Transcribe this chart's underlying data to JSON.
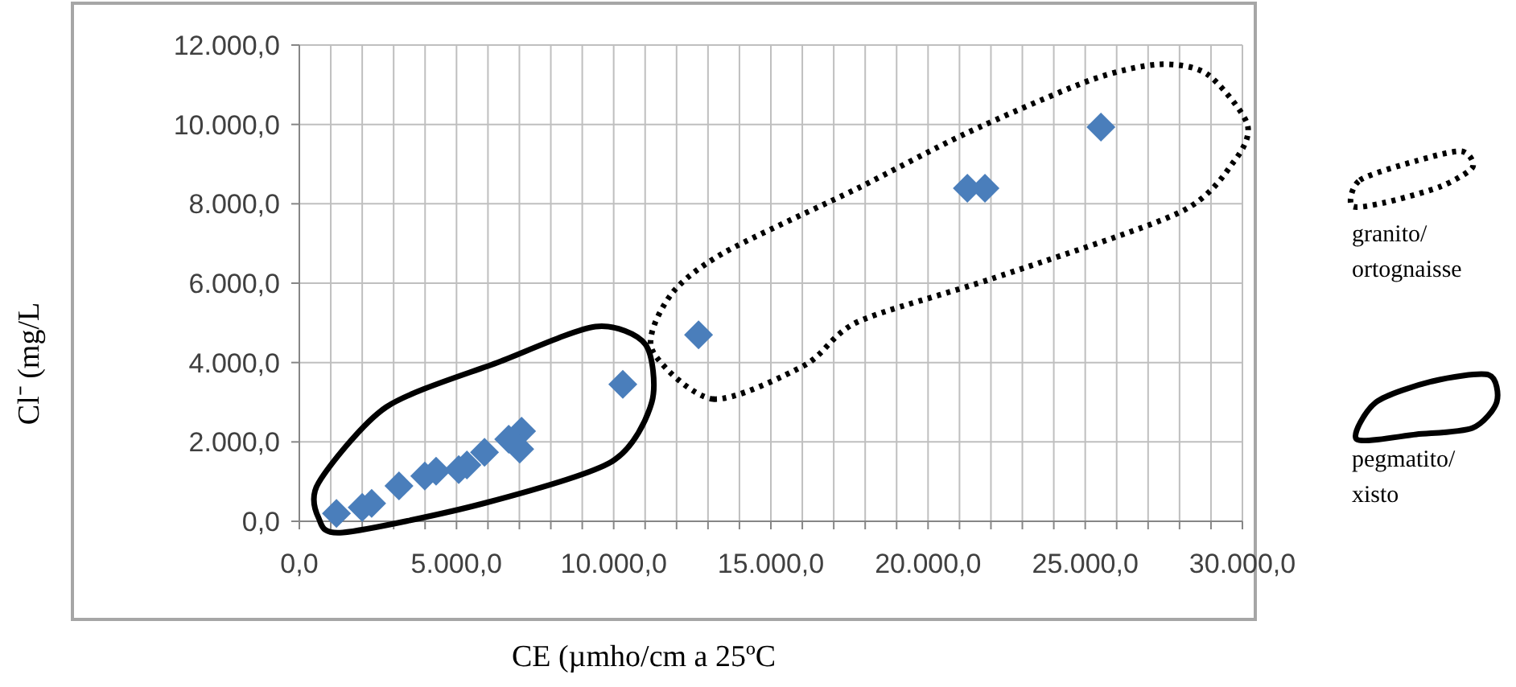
{
  "chart_data": {
    "type": "scatter",
    "xlabel": "CE (µmho/cm a 25ºC",
    "ylabel": "Cl⁻ (mg/L",
    "x": [
      1180,
      2000,
      2300,
      3170,
      3990,
      4350,
      5070,
      5330,
      5890,
      6660,
      7070,
      7010,
      10290,
      12700,
      21250,
      21810,
      25500
    ],
    "series": [
      {
        "color": "#4a7ebb",
        "values": [
          200,
          350,
          450,
          890,
          1140,
          1260,
          1300,
          1420,
          1740,
          2070,
          2270,
          1820,
          3450,
          4700,
          8390,
          8390,
          9930
        ]
      }
    ],
    "marker": "diamond",
    "xlim": [
      0,
      30000
    ],
    "ylim": [
      0,
      12000
    ],
    "xticks": [
      {
        "value": 0,
        "label": "0,0"
      },
      {
        "value": 1000,
        "label": null
      },
      {
        "value": 2000,
        "label": null
      },
      {
        "value": 3000,
        "label": null
      },
      {
        "value": 4000,
        "label": null
      },
      {
        "value": 5000,
        "label": "5.000,0"
      },
      {
        "value": 6000,
        "label": null
      },
      {
        "value": 7000,
        "label": null
      },
      {
        "value": 8000,
        "label": null
      },
      {
        "value": 9000,
        "label": null
      },
      {
        "value": 10000,
        "label": "10.000,0"
      },
      {
        "value": 11000,
        "label": null
      },
      {
        "value": 12000,
        "label": null
      },
      {
        "value": 13000,
        "label": null
      },
      {
        "value": 14000,
        "label": null
      },
      {
        "value": 15000,
        "label": "15.000,0"
      },
      {
        "value": 16000,
        "label": null
      },
      {
        "value": 17000,
        "label": null
      },
      {
        "value": 18000,
        "label": null
      },
      {
        "value": 19000,
        "label": null
      },
      {
        "value": 20000,
        "label": "20.000,0"
      },
      {
        "value": 21000,
        "label": null
      },
      {
        "value": 22000,
        "label": null
      },
      {
        "value": 23000,
        "label": null
      },
      {
        "value": 24000,
        "label": null
      },
      {
        "value": 25000,
        "label": "25.000,0"
      },
      {
        "value": 26000,
        "label": null
      },
      {
        "value": 27000,
        "label": null
      },
      {
        "value": 28000,
        "label": null
      },
      {
        "value": 29000,
        "label": null
      },
      {
        "value": 30000,
        "label": "30.000,0"
      }
    ],
    "yticks": [
      {
        "value": 0,
        "label": "0,0"
      },
      {
        "value": 2000,
        "label": "2.000,0"
      },
      {
        "value": 4000,
        "label": "4.000,0"
      },
      {
        "value": 6000,
        "label": "6.000,0"
      },
      {
        "value": 8000,
        "label": "8.000,0"
      },
      {
        "value": 10000,
        "label": "10.000,0"
      },
      {
        "value": 12000,
        "label": "12.000,0"
      }
    ],
    "grid": true,
    "annotations": [
      "granito/ortognaisse",
      "pegmatito/xisto"
    ]
  }
}
